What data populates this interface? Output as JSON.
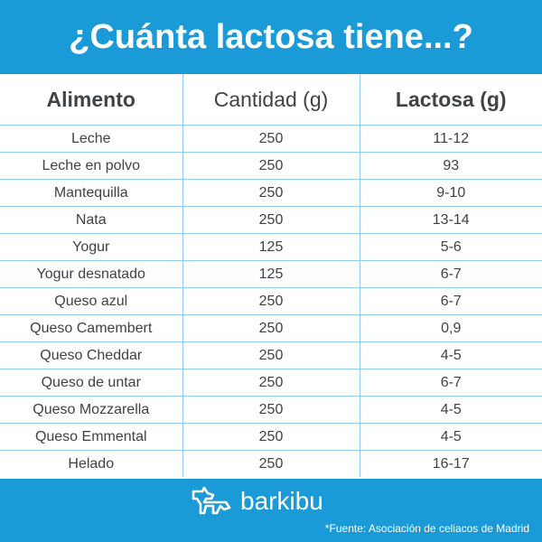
{
  "header": {
    "title": "¿Cuánta lactosa tiene...?"
  },
  "table": {
    "columns": [
      "Alimento",
      "Cantidad (g)",
      "Lactosa (g)"
    ],
    "rows": [
      {
        "food": "Leche",
        "amount": "250",
        "lactose": "11-12"
      },
      {
        "food": "Leche en polvo",
        "amount": "250",
        "lactose": "93"
      },
      {
        "food": "Mantequilla",
        "amount": "250",
        "lactose": "9-10"
      },
      {
        "food": "Nata",
        "amount": "250",
        "lactose": "13-14"
      },
      {
        "food": "Yogur",
        "amount": "125",
        "lactose": "5-6"
      },
      {
        "food": "Yogur desnatado",
        "amount": "125",
        "lactose": "6-7"
      },
      {
        "food": "Queso azul",
        "amount": "250",
        "lactose": "6-7"
      },
      {
        "food": "Queso Camembert",
        "amount": "250",
        "lactose": "0,9"
      },
      {
        "food": "Queso Cheddar",
        "amount": "250",
        "lactose": "4-5"
      },
      {
        "food": "Queso de untar",
        "amount": "250",
        "lactose": "6-7"
      },
      {
        "food": "Queso Mozzarella",
        "amount": "250",
        "lactose": "4-5"
      },
      {
        "food": "Queso Emmental",
        "amount": "250",
        "lactose": "4-5"
      },
      {
        "food": "Helado",
        "amount": "250",
        "lactose": "16-17"
      }
    ]
  },
  "footer": {
    "brand": "barkibu",
    "logo_icon": "dog-logo-icon",
    "source": "*Fuente: Asociación de celiacos de Madrid"
  },
  "colors": {
    "brand_blue": "#1a9bd7",
    "grid_line": "#8fd0ef",
    "text": "#3e4244"
  }
}
